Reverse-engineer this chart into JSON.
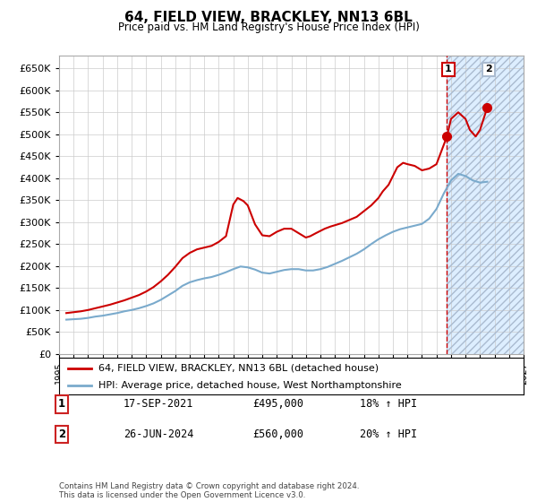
{
  "title": "64, FIELD VIEW, BRACKLEY, NN13 6BL",
  "subtitle": "Price paid vs. HM Land Registry's House Price Index (HPI)",
  "legend_line1": "64, FIELD VIEW, BRACKLEY, NN13 6BL (detached house)",
  "legend_line2": "HPI: Average price, detached house, West Northamptonshire",
  "transaction1_date": "17-SEP-2021",
  "transaction1_price": "£495,000",
  "transaction1_hpi": "18% ↑ HPI",
  "transaction2_date": "26-JUN-2024",
  "transaction2_price": "£560,000",
  "transaction2_hpi": "20% ↑ HPI",
  "copyright": "Contains HM Land Registry data © Crown copyright and database right 2024.\nThis data is licensed under the Open Government Licence v3.0.",
  "ylim": [
    0,
    680000
  ],
  "yticks": [
    0,
    50000,
    100000,
    150000,
    200000,
    250000,
    300000,
    350000,
    400000,
    450000,
    500000,
    550000,
    600000,
    650000
  ],
  "xlim": [
    1995,
    2027
  ],
  "shaded_x_start": 2021.7,
  "marker1_x": 2021.72,
  "marker1_y": 495000,
  "marker2_x": 2024.49,
  "marker2_y": 560000,
  "vline_x": 2021.72,
  "red_line_color": "#cc0000",
  "blue_line_color": "#7aaacc",
  "shaded_color": "#ddeeff",
  "vline_color": "#cc0000",
  "background_color": "#ffffff",
  "grid_color": "#cccccc",
  "years_hpi": [
    1995.5,
    1996.0,
    1996.5,
    1997.0,
    1997.5,
    1998.0,
    1998.5,
    1999.0,
    1999.5,
    2000.0,
    2000.5,
    2001.0,
    2001.5,
    2002.0,
    2002.5,
    2003.0,
    2003.5,
    2004.0,
    2004.5,
    2005.0,
    2005.5,
    2006.0,
    2006.5,
    2007.0,
    2007.5,
    2008.0,
    2008.5,
    2009.0,
    2009.5,
    2010.0,
    2010.5,
    2011.0,
    2011.5,
    2012.0,
    2012.5,
    2013.0,
    2013.5,
    2014.0,
    2014.5,
    2015.0,
    2015.5,
    2016.0,
    2016.5,
    2017.0,
    2017.5,
    2018.0,
    2018.5,
    2019.0,
    2019.5,
    2020.0,
    2020.5,
    2021.0,
    2021.5,
    2022.0,
    2022.5,
    2023.0,
    2023.5,
    2024.0,
    2024.5
  ],
  "values_hpi": [
    78000,
    79000,
    80000,
    82000,
    85000,
    87000,
    90000,
    93000,
    97000,
    100000,
    104000,
    109000,
    115000,
    123000,
    133000,
    143000,
    155000,
    163000,
    168000,
    172000,
    175000,
    180000,
    186000,
    193000,
    199000,
    197000,
    192000,
    185000,
    183000,
    187000,
    191000,
    193000,
    193000,
    190000,
    190000,
    193000,
    198000,
    205000,
    212000,
    220000,
    228000,
    238000,
    250000,
    261000,
    270000,
    278000,
    284000,
    288000,
    292000,
    296000,
    308000,
    330000,
    365000,
    395000,
    410000,
    405000,
    395000,
    390000,
    392000
  ],
  "years_red": [
    1995.5,
    1996.0,
    1996.5,
    1997.0,
    1997.5,
    1998.0,
    1998.5,
    1999.0,
    1999.5,
    2000.0,
    2000.5,
    2001.0,
    2001.5,
    2002.0,
    2002.5,
    2003.0,
    2003.5,
    2004.0,
    2004.5,
    2005.0,
    2005.5,
    2006.0,
    2006.5,
    2007.0,
    2007.3,
    2007.7,
    2008.0,
    2008.5,
    2009.0,
    2009.5,
    2010.0,
    2010.5,
    2011.0,
    2011.5,
    2012.0,
    2012.3,
    2012.7,
    2013.0,
    2013.3,
    2013.7,
    2014.0,
    2014.5,
    2015.0,
    2015.5,
    2016.0,
    2016.5,
    2017.0,
    2017.3,
    2017.7,
    2018.0,
    2018.3,
    2018.7,
    2019.0,
    2019.5,
    2020.0,
    2020.5,
    2021.0,
    2021.72,
    2022.0,
    2022.5,
    2023.0,
    2023.3,
    2023.7,
    2024.0,
    2024.49
  ],
  "values_red": [
    93000,
    95000,
    97000,
    100000,
    104000,
    108000,
    112000,
    117000,
    122000,
    128000,
    134000,
    142000,
    152000,
    165000,
    180000,
    198000,
    218000,
    230000,
    238000,
    242000,
    246000,
    255000,
    268000,
    340000,
    355000,
    348000,
    338000,
    295000,
    270000,
    268000,
    278000,
    285000,
    285000,
    275000,
    265000,
    268000,
    275000,
    280000,
    285000,
    290000,
    293000,
    298000,
    305000,
    312000,
    325000,
    338000,
    355000,
    370000,
    385000,
    405000,
    425000,
    435000,
    432000,
    428000,
    418000,
    422000,
    432000,
    495000,
    535000,
    550000,
    535000,
    510000,
    495000,
    510000,
    560000
  ]
}
